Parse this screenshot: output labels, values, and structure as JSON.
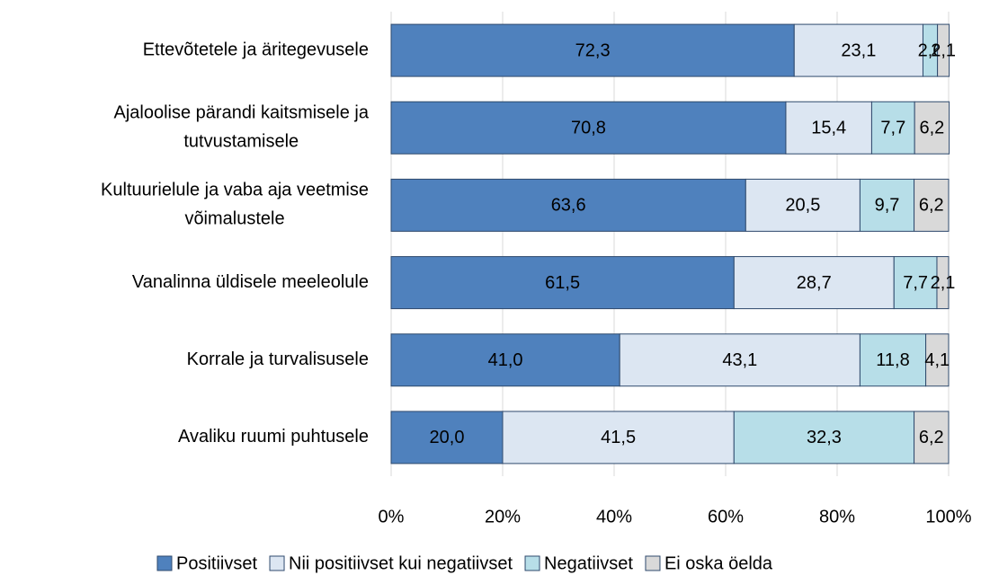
{
  "chart_data": {
    "type": "stacked-bar-horizontal",
    "categories": [
      [
        "Ettevõtetele ja äritegevusele"
      ],
      [
        "Ajaloolise pärandi kaitsmisele ja",
        "tutvustamisele"
      ],
      [
        "Kultuurielule ja vaba aja veetmise",
        "võimalustele"
      ],
      [
        "Vanalinna üldisele meeleolule"
      ],
      [
        "Korrale ja turvalisusele"
      ],
      [
        "Avaliku ruumi puhtusele"
      ]
    ],
    "series": [
      {
        "name": "Positiivset",
        "color": "#4f81bd",
        "values": [
          72.3,
          70.8,
          63.6,
          61.5,
          41.0,
          20.0
        ],
        "value_labels": [
          "72,3",
          "70,8",
          "63,6",
          "61,5",
          "41,0",
          "20,0"
        ]
      },
      {
        "name": "Nii positiivset kui negatiivset",
        "color": "#dce6f2",
        "values": [
          23.1,
          15.4,
          20.5,
          28.7,
          43.1,
          41.5
        ],
        "value_labels": [
          "23,1",
          "15,4",
          "20,5",
          "28,7",
          "43,1",
          "41,5"
        ]
      },
      {
        "name": "Negatiivset",
        "color": "#b7dee8",
        "values": [
          2.6,
          7.7,
          9.7,
          7.7,
          11.8,
          32.3
        ],
        "value_labels": [
          "2,6",
          "7,7",
          "9,7",
          "7,7",
          "11,8",
          "32,3"
        ]
      },
      {
        "name": "Ei oska öelda",
        "color": "#d9d9d9",
        "values": [
          2.1,
          6.2,
          6.2,
          2.1,
          4.1,
          6.2
        ],
        "value_labels": [
          "2,1",
          "6,2",
          "6,2",
          "2,1",
          "4,1",
          "6,2"
        ]
      }
    ],
    "xlim": [
      0,
      100
    ],
    "xticks": [
      {
        "value": 0,
        "label": "0%"
      },
      {
        "value": 20,
        "label": "20%"
      },
      {
        "value": 40,
        "label": "40%"
      },
      {
        "value": 60,
        "label": "60%"
      },
      {
        "value": 80,
        "label": "80%"
      },
      {
        "value": 100,
        "label": "100%"
      }
    ],
    "grid": true,
    "legend": "bottom"
  }
}
